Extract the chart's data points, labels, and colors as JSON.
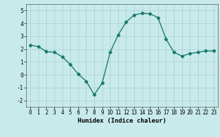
{
  "x": [
    0,
    1,
    2,
    3,
    4,
    5,
    6,
    7,
    8,
    9,
    10,
    11,
    12,
    13,
    14,
    15,
    16,
    17,
    18,
    19,
    20,
    21,
    22,
    23
  ],
  "y": [
    2.3,
    2.2,
    1.8,
    1.75,
    1.4,
    0.8,
    0.05,
    -0.5,
    -1.55,
    -0.65,
    1.75,
    3.1,
    4.1,
    4.65,
    4.8,
    4.75,
    4.45,
    2.8,
    1.75,
    1.45,
    1.65,
    1.75,
    1.85,
    1.85
  ],
  "line_color": "#1a7a6e",
  "marker": "D",
  "marker_size": 2.2,
  "bg_color": "#c8eaea",
  "grid_color": "#a8d0d0",
  "xlabel": "Humidex (Indice chaleur)",
  "xlim": [
    -0.5,
    23.5
  ],
  "ylim": [
    -2.5,
    5.5
  ],
  "yticks": [
    -2,
    -1,
    0,
    1,
    2,
    3,
    4,
    5
  ],
  "xticks": [
    0,
    1,
    2,
    3,
    4,
    5,
    6,
    7,
    8,
    9,
    10,
    11,
    12,
    13,
    14,
    15,
    16,
    17,
    18,
    19,
    20,
    21,
    22,
    23
  ],
  "tick_label_fontsize": 5.5,
  "xlabel_fontsize": 6.5,
  "line_width": 1.0
}
